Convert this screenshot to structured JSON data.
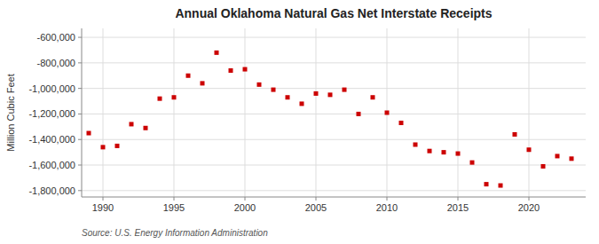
{
  "chart_data": {
    "type": "scatter",
    "title": "Annual Oklahoma Natural Gas Net Interstate Receipts",
    "y_label": "Million Cubic Feet",
    "source": "Source: U.S. Energy Information Administration",
    "x": [
      1989,
      1990,
      1991,
      1992,
      1993,
      1994,
      1995,
      1996,
      1997,
      1998,
      1999,
      2000,
      2001,
      2002,
      2003,
      2004,
      2005,
      2006,
      2007,
      2008,
      2009,
      2010,
      2011,
      2012,
      2013,
      2014,
      2015,
      2016,
      2017,
      2018,
      2019,
      2020,
      2021,
      2022,
      2023
    ],
    "values": [
      -1350000,
      -1460000,
      -1450000,
      -1280000,
      -1310000,
      -1080000,
      -1070000,
      -900000,
      -960000,
      -720000,
      -860000,
      -850000,
      -970000,
      -1010000,
      -1070000,
      -1120000,
      -1040000,
      -1050000,
      -1010000,
      -1200000,
      -1070000,
      -1190000,
      -1270000,
      -1440000,
      -1490000,
      -1500000,
      -1510000,
      -1580000,
      -1750000,
      -1760000,
      -1360000,
      -1480000,
      -1610000,
      -1530000,
      -1550000
    ],
    "color": "#cc0000",
    "marker": "square",
    "xlim": [
      1988.5,
      2024
    ],
    "ylim": [
      -1850000,
      -530000
    ],
    "xticks": [
      1990,
      1995,
      2000,
      2005,
      2010,
      2015,
      2020
    ],
    "yticks": [
      {
        "value": -600000,
        "label": "-600,000"
      },
      {
        "value": -800000,
        "label": "-800,000"
      },
      {
        "value": -1000000,
        "label": "-1,000,000"
      },
      {
        "value": -1200000,
        "label": "-1,200,000"
      },
      {
        "value": -1400000,
        "label": "-1,400,000"
      },
      {
        "value": -1600000,
        "label": "-1,600,000"
      },
      {
        "value": -1800000,
        "label": "-1,800,000"
      }
    ],
    "grid": true
  }
}
